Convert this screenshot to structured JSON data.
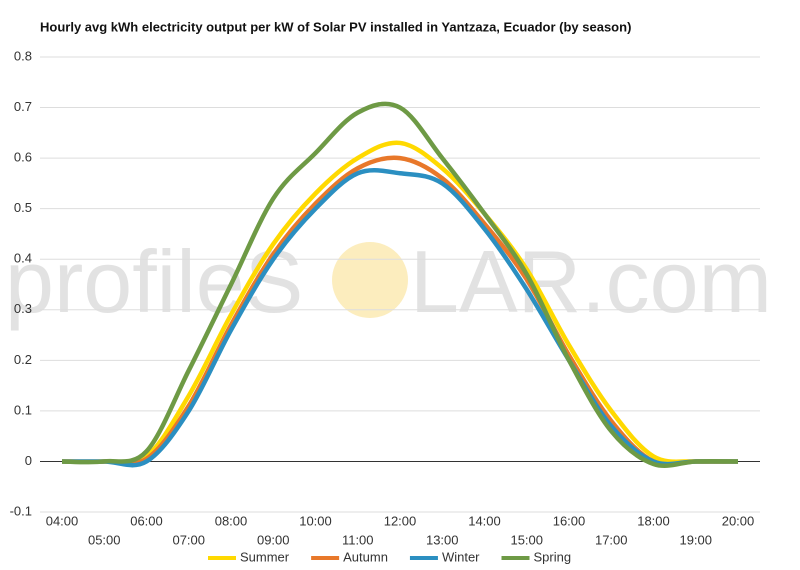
{
  "chart_data": {
    "type": "line",
    "title": "Hourly avg kWh electricity output per kW of Solar PV installed in Yantzaza, Ecuador (by season)",
    "watermark": [
      "profileS",
      "LAR.com"
    ],
    "categories": [
      "04:00",
      "05:00",
      "06:00",
      "07:00",
      "08:00",
      "09:00",
      "10:00",
      "11:00",
      "12:00",
      "13:00",
      "14:00",
      "15:00",
      "16:00",
      "17:00",
      "18:00",
      "19:00",
      "20:00"
    ],
    "series": [
      {
        "name": "Summer",
        "color": "#ffd900",
        "values": [
          0,
          0,
          0.01,
          0.13,
          0.29,
          0.43,
          0.53,
          0.6,
          0.63,
          0.58,
          0.49,
          0.38,
          0.23,
          0.1,
          0.01,
          0,
          0
        ]
      },
      {
        "name": "Autumn",
        "color": "#e8782a",
        "values": [
          0,
          0,
          0.005,
          0.11,
          0.27,
          0.41,
          0.51,
          0.58,
          0.6,
          0.56,
          0.47,
          0.36,
          0.21,
          0.08,
          0,
          0,
          0
        ]
      },
      {
        "name": "Winter",
        "color": "#2b8fc1",
        "values": [
          0,
          0,
          0,
          0.1,
          0.26,
          0.4,
          0.5,
          0.57,
          0.57,
          0.55,
          0.46,
          0.34,
          0.2,
          0.07,
          0,
          0,
          0
        ]
      },
      {
        "name": "Spring",
        "color": "#6e9a45",
        "values": [
          0,
          0,
          0.02,
          0.18,
          0.35,
          0.52,
          0.61,
          0.69,
          0.7,
          0.6,
          0.49,
          0.37,
          0.2,
          0.06,
          -0.005,
          0,
          0
        ]
      }
    ],
    "ylim": [
      -0.1,
      0.8
    ],
    "yticks": [
      -0.1,
      0.0,
      0.1,
      0.2,
      0.3,
      0.4,
      0.5,
      0.6,
      0.7,
      0.8
    ],
    "grid": true
  }
}
